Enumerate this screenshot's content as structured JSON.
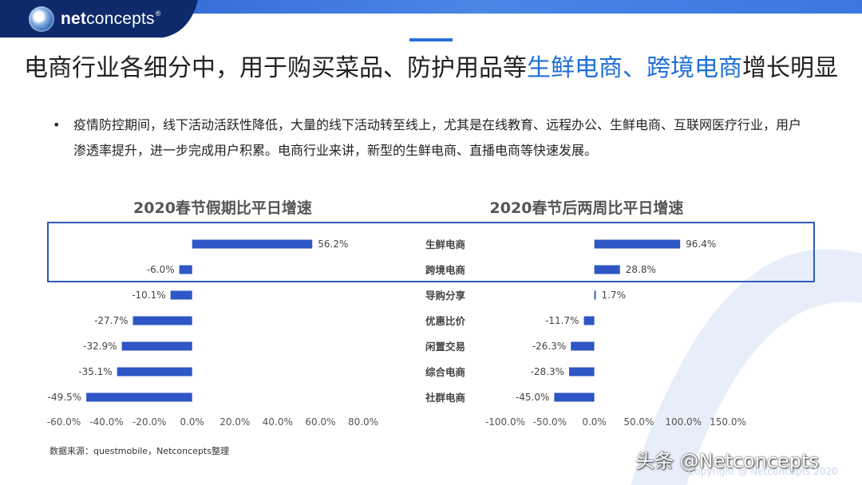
{
  "header": {
    "brand_bold": "net",
    "brand_rest": "concepts",
    "brand_mark": "®"
  },
  "title": {
    "part1": "电商行业各细分中，用于购买菜品、防护用品等",
    "highlight1": "生鲜电商",
    "sep": "、",
    "highlight2": "跨境电商",
    "part2": "增长明显"
  },
  "bullet": {
    "symbol": "•",
    "text": "疫情防控期间，线下活动活跃性降低，大量的线下活动转至线上，尤其是在线教育、远程办公、生鲜电商、互联网医疗行业，用户渗透率提升，进一步完成用户积累。电商行业来讲，新型的生鲜电商、直播电商等快速发展。"
  },
  "colors": {
    "bar": "#2e56c6",
    "highlight_text": "#1f6fd6",
    "highlight_box": "#2f5ab8",
    "accent": "#2a6fdb",
    "header_dark": "#0f2a6b"
  },
  "chart_data": [
    {
      "type": "bar",
      "orientation": "horizontal",
      "title": "2020春节假期比平日增速",
      "categories": [
        "生鲜电商",
        "跨境电商",
        "导购分享",
        "优惠比价",
        "闲置交易",
        "综合电商",
        "社群电商"
      ],
      "values": [
        56.2,
        -6.0,
        -10.1,
        -27.7,
        -32.9,
        -35.1,
        -49.5
      ],
      "value_labels": [
        "56.2%",
        "-6.0%",
        "-10.1%",
        "-27.7%",
        "-32.9%",
        "-35.1%",
        "-49.5%"
      ],
      "xlim": [
        -60,
        80
      ],
      "xticks": [
        -60,
        -40,
        -20,
        0,
        20,
        40,
        60,
        80
      ],
      "xtick_labels": [
        "-60.0%",
        "-40.0%",
        "-20.0%",
        "0.0%",
        "20.0%",
        "40.0%",
        "60.0%",
        "80.0%"
      ],
      "grid": false
    },
    {
      "type": "bar",
      "orientation": "horizontal",
      "title": "2020春节后两周比平日增速",
      "categories": [
        "生鲜电商",
        "跨境电商",
        "导购分享",
        "优惠比价",
        "闲置交易",
        "综合电商",
        "社群电商"
      ],
      "values": [
        96.4,
        28.8,
        1.7,
        -11.7,
        -26.3,
        -28.3,
        -45.0
      ],
      "value_labels": [
        "96.4%",
        "28.8%",
        "1.7%",
        "-11.7%",
        "-26.3%",
        "-28.3%",
        "-45.0%"
      ],
      "xlim": [
        -100,
        150
      ],
      "xticks": [
        -100,
        -50,
        0,
        50,
        100,
        150
      ],
      "xtick_labels": [
        "-100.0%",
        "-50.0%",
        "0.0%",
        "50.0%",
        "100.0%",
        "150.0%"
      ],
      "grid": false
    }
  ],
  "footer": {
    "source": "数据来源：questmobile，Netconcepts整理",
    "watermark": "头条 @Netconcepts",
    "copyright": "Copyright @ Netconcepts 2020"
  }
}
